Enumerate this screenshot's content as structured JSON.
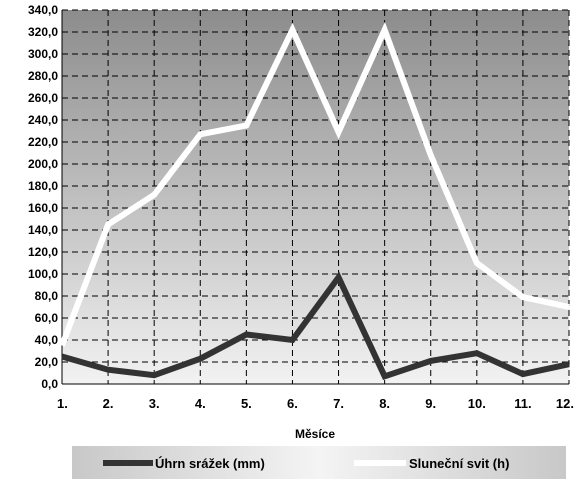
{
  "chart_data": {
    "type": "line",
    "title": "",
    "xlabel": "Měsíce",
    "ylabel": "",
    "categories": [
      "1.",
      "2.",
      "3.",
      "4.",
      "5.",
      "6.",
      "7.",
      "8.",
      "9.",
      "10.",
      "11.",
      "12."
    ],
    "ylim": [
      0,
      340
    ],
    "yticks": [
      0,
      20,
      40,
      60,
      80,
      100,
      120,
      140,
      160,
      180,
      200,
      220,
      240,
      260,
      280,
      300,
      320,
      340
    ],
    "ytick_labels": [
      "0,0",
      "20,0",
      "40,0",
      "60,0",
      "80,0",
      "100,0",
      "120,0",
      "140,0",
      "160,0",
      "180,0",
      "200,0",
      "220,0",
      "240,0",
      "260,0",
      "280,0",
      "300,0",
      "320,0",
      "340,0"
    ],
    "grid": true,
    "legend_position": "bottom",
    "series": [
      {
        "name": "Úhrn srážek (mm)",
        "color": "#333333",
        "values": [
          25,
          13,
          8,
          23,
          45,
          40,
          97,
          7,
          21,
          28,
          9,
          18
        ]
      },
      {
        "name": "Sluneční svit (h)",
        "color": "#ffffff",
        "values": [
          35,
          145,
          172,
          227,
          235,
          322,
          229,
          322,
          208,
          110,
          79,
          70
        ]
      }
    ]
  }
}
